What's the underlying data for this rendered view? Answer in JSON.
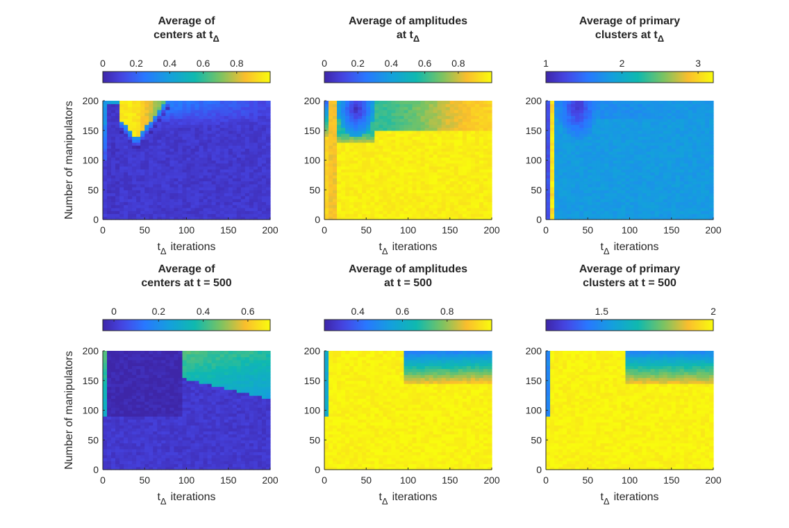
{
  "chart_data": [
    {
      "type": "heatmap",
      "title_lines": [
        "Average of",
        "centers at t"
      ],
      "title_sub": "Δ",
      "xlabel": "t",
      "xlabel_sub": "Δ",
      "xlabel_tail": "iterations",
      "ylabel": "Number of manipulators",
      "xlim": [
        0,
        200
      ],
      "ylim": [
        0,
        200
      ],
      "x_ticks": [
        0,
        50,
        100,
        150,
        200
      ],
      "y_ticks": [
        0,
        50,
        100,
        150,
        200
      ],
      "colorbar": {
        "clim": [
          0,
          1
        ],
        "ticks": [
          0,
          0.2,
          0.4,
          0.6,
          0.8
        ],
        "tick_labels": [
          "0",
          "0.2",
          "0.4",
          "0.6",
          "0.8"
        ]
      },
      "grid": {
        "nx": 40,
        "ny": 40
      },
      "regions": [
        {
          "x": [
            0,
            5
          ],
          "y": [
            160,
            200
          ],
          "value": 0.35
        },
        {
          "x": [
            0,
            5
          ],
          "y": [
            100,
            160
          ],
          "value": 0.15
        },
        {
          "x": [
            20,
            65
          ],
          "y": [
            130,
            200
          ],
          "value": 0.95,
          "note": "V-shaped peak centered near x=40, y=175"
        },
        {
          "x": [
            0,
            200
          ],
          "y": [
            0,
            100
          ],
          "value": 0.08
        }
      ]
    },
    {
      "type": "heatmap",
      "title_lines": [
        "Average of amplitudes",
        "at t"
      ],
      "title_sub": "Δ",
      "xlabel": "t",
      "xlabel_sub": "Δ",
      "xlabel_tail": "iterations",
      "ylabel": "",
      "xlim": [
        0,
        200
      ],
      "ylim": [
        0,
        200
      ],
      "x_ticks": [
        0,
        50,
        100,
        150,
        200
      ],
      "y_ticks": [
        0,
        50,
        100,
        150,
        200
      ],
      "colorbar": {
        "clim": [
          0,
          1
        ],
        "ticks": [
          0,
          0.2,
          0.4,
          0.6,
          0.8
        ],
        "tick_labels": [
          "0",
          "0.2",
          "0.4",
          "0.6",
          "0.8"
        ]
      },
      "grid": {
        "nx": 40,
        "ny": 40
      },
      "regions": [
        {
          "x": [
            20,
            60
          ],
          "y": [
            140,
            200
          ],
          "value": 0.05,
          "note": "dark dip centered near x=35, y=185"
        },
        {
          "x": [
            60,
            200
          ],
          "y": [
            150,
            200
          ],
          "value": 0.8
        },
        {
          "x": [
            0,
            200
          ],
          "y": [
            0,
            120
          ],
          "value": 0.97
        }
      ]
    },
    {
      "type": "heatmap",
      "title_lines": [
        "Average of primary",
        "clusters at t"
      ],
      "title_sub": "Δ",
      "xlabel": "t",
      "xlabel_sub": "Δ",
      "xlabel_tail": "iterations",
      "ylabel": "",
      "xlim": [
        0,
        200
      ],
      "ylim": [
        0,
        200
      ],
      "x_ticks": [
        0,
        50,
        100,
        150,
        200
      ],
      "y_ticks": [
        0,
        50,
        100,
        150,
        200
      ],
      "colorbar": {
        "clim": [
          1,
          3.2
        ],
        "ticks": [
          1,
          2,
          3
        ],
        "tick_labels": [
          "1",
          "2",
          "3"
        ]
      },
      "grid": {
        "nx": 40,
        "ny": 40
      },
      "regions": [
        {
          "x": [
            5,
            10
          ],
          "y": [
            0,
            200
          ],
          "value": 3.1,
          "note": "yellow/orange stripe"
        },
        {
          "x": [
            20,
            60
          ],
          "y": [
            140,
            200
          ],
          "value": 1.1,
          "note": "dark dip centered near x=35, y=185"
        },
        {
          "x": [
            0,
            200
          ],
          "y": [
            0,
            200
          ],
          "value": 1.8
        }
      ]
    },
    {
      "type": "heatmap",
      "title_lines": [
        "Average of",
        "centers at t = 500"
      ],
      "title_sub": "",
      "xlabel": "t",
      "xlabel_sub": "Δ",
      "xlabel_tail": "iterations",
      "ylabel": "Number of manipulators",
      "xlim": [
        0,
        200
      ],
      "ylim": [
        0,
        200
      ],
      "x_ticks": [
        0,
        50,
        100,
        150,
        200
      ],
      "y_ticks": [
        0,
        50,
        100,
        150,
        200
      ],
      "colorbar": {
        "clim": [
          -0.05,
          0.7
        ],
        "ticks": [
          0,
          0.2,
          0.4,
          0.6
        ],
        "tick_labels": [
          "0",
          "0.2",
          "0.4",
          "0.6"
        ]
      },
      "grid": {
        "nx": 40,
        "ny": 40
      },
      "regions": [
        {
          "x": [
            0,
            5
          ],
          "y": [
            90,
            200
          ],
          "value": 0.35
        },
        {
          "x": [
            5,
            95
          ],
          "y": [
            90,
            200
          ],
          "value": 0.0
        },
        {
          "x": [
            95,
            200
          ],
          "y": [
            130,
            200
          ],
          "value": 0.35,
          "note": "wedge rising to the right"
        },
        {
          "x": [
            0,
            200
          ],
          "y": [
            0,
            90
          ],
          "value": 0.03
        }
      ]
    },
    {
      "type": "heatmap",
      "title_lines": [
        "Average of amplitudes",
        "at t = 500"
      ],
      "title_sub": "",
      "xlabel": "t",
      "xlabel_sub": "Δ",
      "xlabel_tail": "iterations",
      "ylabel": "",
      "xlim": [
        0,
        200
      ],
      "ylim": [
        0,
        200
      ],
      "x_ticks": [
        0,
        50,
        100,
        150,
        200
      ],
      "y_ticks": [
        0,
        50,
        100,
        150,
        200
      ],
      "colorbar": {
        "clim": [
          0.25,
          1.0
        ],
        "ticks": [
          0.4,
          0.6,
          0.8
        ],
        "tick_labels": [
          "0.4",
          "0.6",
          "0.8"
        ]
      },
      "grid": {
        "nx": 40,
        "ny": 40
      },
      "regions": [
        {
          "x": [
            0,
            5
          ],
          "y": [
            90,
            200
          ],
          "value": 0.5
        },
        {
          "x": [
            95,
            200
          ],
          "y": [
            150,
            200
          ],
          "value": 0.45,
          "note": "wedge rising to the right"
        },
        {
          "x": [
            0,
            200
          ],
          "y": [
            0,
            200
          ],
          "value": 0.97
        }
      ]
    },
    {
      "type": "heatmap",
      "title_lines": [
        "Average of primary",
        "clusters at t = 500"
      ],
      "title_sub": "",
      "xlabel": "t",
      "xlabel_sub": "Δ",
      "xlabel_tail": "iterations",
      "ylabel": "",
      "xlim": [
        0,
        200
      ],
      "ylim": [
        0,
        200
      ],
      "x_ticks": [
        0,
        50,
        100,
        150,
        200
      ],
      "y_ticks": [
        0,
        50,
        100,
        150,
        200
      ],
      "colorbar": {
        "clim": [
          1.25,
          2.0
        ],
        "ticks": [
          1.5,
          2
        ],
        "tick_labels": [
          "1.5",
          "2"
        ]
      },
      "grid": {
        "nx": 40,
        "ny": 40
      },
      "regions": [
        {
          "x": [
            0,
            5
          ],
          "y": [
            90,
            200
          ],
          "value": 1.5
        },
        {
          "x": [
            95,
            200
          ],
          "y": [
            150,
            200
          ],
          "value": 1.45,
          "note": "wedge rising to the right"
        },
        {
          "x": [
            0,
            200
          ],
          "y": [
            0,
            200
          ],
          "value": 1.98
        }
      ]
    }
  ]
}
